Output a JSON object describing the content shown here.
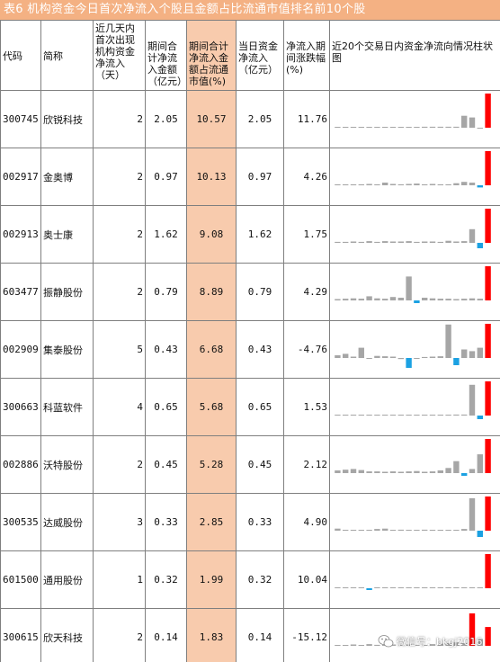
{
  "title": "表6  机构资金今日首次净流入个股且金额占比流通市值排名前10个股",
  "headers": {
    "code": "代码",
    "name": "简称",
    "days": "近几天内首次出现机构资金净流入（天）",
    "net_amount": "期间合计净流入金额（亿元）",
    "ratio": "期间合计净流入金额占流通市值(%)",
    "today": "当日资金净流入（亿元）",
    "change": "净流入期间涨跌幅(%)",
    "chart": "近20个交易日内资金净流向情况柱状图"
  },
  "colors": {
    "up": "#ff0000",
    "down": "#1ba1e2",
    "neutral": "#a6a6a6",
    "highlight": "#f8cbad",
    "title_bg": "#f4b183"
  },
  "rows": [
    {
      "code": "300745",
      "name": "欣锐科技",
      "days": "2",
      "net": "2.05",
      "ratio": "10.57",
      "today": "2.05",
      "change": "11.76",
      "bars": [
        0,
        0,
        0,
        0,
        0,
        0,
        0,
        0.02,
        0,
        0,
        0.02,
        0.03,
        0.03,
        0.03,
        0.03,
        0.03,
        0.35,
        0.3,
        -0.02,
        1.0
      ]
    },
    {
      "code": "002917",
      "name": "金奥博",
      "days": "2",
      "net": "0.97",
      "ratio": "10.13",
      "today": "0.97",
      "change": "4.26",
      "bars": [
        0.03,
        0.03,
        0.03,
        0.03,
        0.04,
        0.03,
        0.08,
        0.04,
        0.03,
        0.04,
        0.05,
        0.03,
        0.04,
        0.03,
        0.03,
        0.06,
        0.1,
        0.08,
        -0.12,
        1.0
      ]
    },
    {
      "code": "002913",
      "name": "奥士康",
      "days": "2",
      "net": "1.62",
      "ratio": "9.08",
      "today": "1.62",
      "change": "1.75",
      "bars": [
        0.03,
        0.03,
        0.04,
        0.03,
        0.05,
        0.03,
        0.05,
        0.04,
        0.04,
        0.05,
        0.03,
        0.04,
        0.04,
        0.03,
        0.06,
        0.04,
        0.05,
        0.4,
        -0.3,
        1.0
      ]
    },
    {
      "code": "603477",
      "name": "振静股份",
      "days": "2",
      "net": "0.79",
      "ratio": "8.89",
      "today": "0.79",
      "change": "4.29",
      "bars": [
        0.04,
        0.05,
        0.06,
        0.05,
        0.12,
        0.06,
        0.05,
        0.1,
        0.08,
        0.7,
        -0.15,
        0.08,
        0.06,
        0.05,
        0.05,
        0.04,
        0.05,
        0.06,
        0.05,
        1.0
      ]
    },
    {
      "code": "002909",
      "name": "集泰股份",
      "days": "5",
      "net": "0.43",
      "ratio": "6.68",
      "today": "0.43",
      "change": "-4.76",
      "bars": [
        0.08,
        0.12,
        0.04,
        0.3,
        -0.05,
        0.06,
        0.05,
        0.04,
        -0.06,
        -0.55,
        -0.05,
        0.03,
        0.04,
        0.05,
        0.98,
        -0.4,
        0.25,
        0.2,
        0.3,
        1.0
      ]
    },
    {
      "code": "300663",
      "name": "科蓝软件",
      "days": "4",
      "net": "0.65",
      "ratio": "5.68",
      "today": "0.65",
      "change": "1.53",
      "bars": [
        0.02,
        0.01,
        0.02,
        0.01,
        0.02,
        0.02,
        0.01,
        0.02,
        0.02,
        0.02,
        0.02,
        0.02,
        0.02,
        0.02,
        0.02,
        0.03,
        0.03,
        0.9,
        -0.2,
        1.0
      ]
    },
    {
      "code": "002886",
      "name": "沃特股份",
      "days": "2",
      "net": "0.45",
      "ratio": "5.28",
      "today": "0.45",
      "change": "2.12",
      "bars": [
        0.08,
        0.1,
        0.12,
        0.09,
        0.05,
        0.05,
        0.04,
        0.05,
        0.04,
        0.05,
        0.06,
        0.04,
        0.05,
        0.08,
        0.15,
        0.35,
        -0.15,
        0.12,
        0.55,
        1.0
      ]
    },
    {
      "code": "300535",
      "name": "达威股份",
      "days": "3",
      "net": "0.33",
      "ratio": "2.85",
      "today": "0.33",
      "change": "4.90",
      "bars": [
        0.06,
        0.01,
        0.02,
        0.01,
        0.02,
        0.05,
        0.06,
        0.02,
        0.03,
        0.02,
        0.02,
        0.03,
        0.02,
        0.02,
        0.02,
        0.02,
        0.05,
        0.95,
        -0.35,
        1.0
      ]
    },
    {
      "code": "601500",
      "name": "通用股份",
      "days": "1",
      "net": "0.32",
      "ratio": "1.99",
      "today": "0.32",
      "change": "10.04",
      "bars": [
        0,
        0.02,
        0,
        0,
        -0.1,
        0,
        0,
        0,
        0,
        0,
        0,
        0,
        0,
        0,
        0,
        0,
        0,
        0,
        0,
        1.0
      ]
    },
    {
      "code": "300615",
      "name": "欣天科技",
      "days": "2",
      "net": "0.14",
      "ratio": "1.83",
      "today": "0.14",
      "change": "-15.12",
      "bars": [
        0,
        0,
        0.04,
        0.02,
        0.05,
        0.03,
        0.02,
        0.04,
        0.03,
        0.04,
        0.03,
        0.02,
        0.05,
        0.06,
        0.08,
        0.1,
        0.08,
        0.95,
        0.2,
        0.55
      ]
    }
  ],
  "watermark": "微信号：bkgj2016",
  "watermark_icon": "wechat-icon"
}
